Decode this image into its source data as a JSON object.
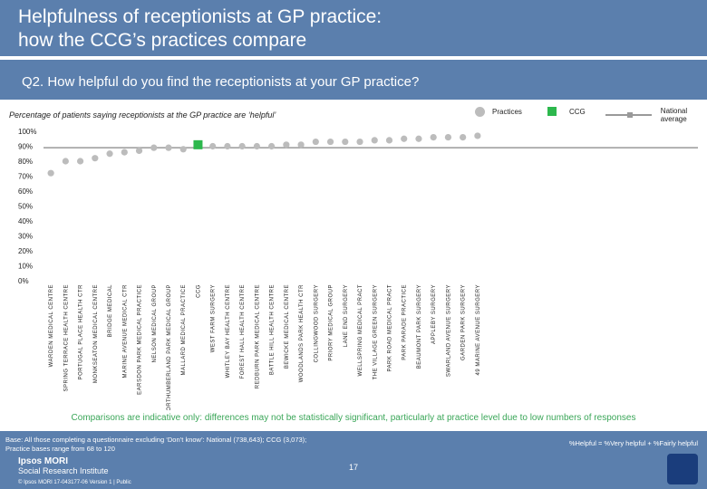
{
  "header": {
    "title": "Helpfulness of receptionists at GP practice:\nhow the CCG’s practices compare"
  },
  "question": "Q2. How helpful do you find the receptionists at your GP practice?",
  "subtitle": "Percentage of patients saying receptionists at the GP practice are ‘helpful’",
  "legend": {
    "practices": "Practices",
    "ccg": "CCG",
    "national": "National average"
  },
  "colors": {
    "practice_marker": "#bcbcbc",
    "ccg_marker": "#2db84d",
    "national_line": "#999999",
    "header_bg": "#5b7fad",
    "caveat_text": "#3aa658"
  },
  "chart_data": {
    "type": "scatter",
    "title": "Percentage of patients saying receptionists at the GP practice are ‘helpful’",
    "ylabel": "",
    "xlabel": "",
    "ylim": [
      0,
      100
    ],
    "y_ticks": [
      "0%",
      "10%",
      "20%",
      "30%",
      "40%",
      "50%",
      "60%",
      "70%",
      "80%",
      "90%",
      "100%"
    ],
    "national_average": 89,
    "categories": [
      "WARDEN MEDICAL CENTRE",
      "SPRING TERRACE HEALTH CENTRE",
      "PORTUGAL PLACE HEALTH CTR",
      "MONKSEATON MEDICAL CENTRE",
      "BRIDGE MEDICAL",
      "MARINE AVENUE MEDICAL CTR",
      "EARSDON PARK MEDICAL PRACTICE",
      "NELSON MEDICAL GROUP",
      "NORTHUMBERLAND PARK MEDICAL GROUP",
      "MALLARD MEDICAL PRACTICE",
      "CCG",
      "WEST FARM SURGERY",
      "WHITLEY BAY HEALTH CENTRE",
      "FOREST HALL HEALTH CENTRE",
      "REDBURN PARK MEDICAL CENTRE",
      "BATTLE HILL HEALTH CENTRE",
      "BEWICKE MEDICAL CENTRE",
      "WOODLANDS PARK HEALTH CTR",
      "COLLINGWOOD SURGERY",
      "PRIORY MEDICAL GROUP",
      "LANE END SURGERY",
      "WELLSPRING MEDICAL PRACT",
      "THE VILLAGE GREEN SURGERY",
      "PARK ROAD MEDICAL PRACT",
      "PARK PARADE PRACTICE",
      "BEAUMONT PARK SURGERY",
      "APPLEBY SURGERY",
      "SWARLAND AVENUE SURGERY",
      "GARDEN PARK SURGERY",
      "49 MARINE AVENUE SURGERY"
    ],
    "values": [
      72,
      80,
      80,
      82,
      85,
      86,
      87,
      89,
      89,
      88,
      91,
      90,
      90,
      90,
      90,
      90,
      91,
      91,
      93,
      93,
      93,
      93,
      94,
      94,
      95,
      95,
      96,
      96,
      96,
      97
    ],
    "ccg_index": 10
  },
  "caveat": "Comparisons are indicative only: differences may not be statistically significant, particularly at practice level due to low numbers of responses",
  "footer": {
    "base_line1": "Base: All those completing a questionnaire excluding ‘Don’t know’: National (738,643); CCG (3,073);",
    "base_line2": "Practice bases range from 68 to 120",
    "helpful_definition": "%Helpful = %Very helpful + %Fairly helpful",
    "page_number": "17",
    "brand_line1": "Ipsos MORI",
    "brand_line2": "Social Research Institute",
    "copyright": "© Ipsos MORI     17-043177-06 Version 1 | Public"
  }
}
